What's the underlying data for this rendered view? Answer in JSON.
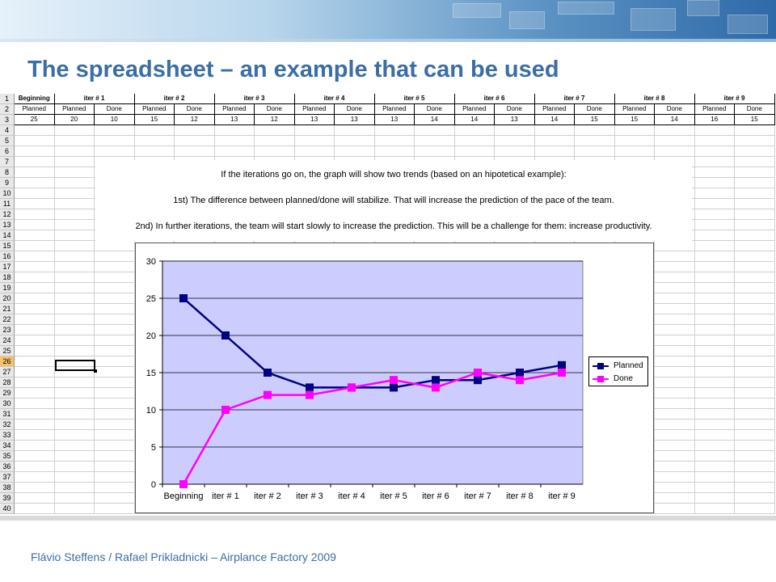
{
  "slide": {
    "title": "The spreadsheet – an example that can be used",
    "footer": "Flávio Steffens / Rafael Prikladnicki – Airplance Factory 2009"
  },
  "sheet": {
    "header_row1": [
      "Beginning",
      "iter # 1",
      "iter # 2",
      "iter # 3",
      "iter # 4",
      "iter # 5",
      "iter # 6",
      "iter # 7",
      "iter # 8",
      "iter # 9"
    ],
    "header_row2": [
      "Planned",
      "Planned",
      "Done",
      "Planned",
      "Done",
      "Planned",
      "Done",
      "Planned",
      "Done",
      "Planned",
      "Done",
      "Planned",
      "Done",
      "Planned",
      "Done",
      "Planned",
      "Done",
      "Planned",
      "Done"
    ],
    "values_row3": [
      "25",
      "20",
      "10",
      "15",
      "12",
      "13",
      "12",
      "13",
      "13",
      "13",
      "14",
      "14",
      "13",
      "14",
      "15",
      "15",
      "14",
      "16",
      "15"
    ],
    "active_row": "26",
    "row_numbers": [
      "1",
      "2",
      "3",
      "4",
      "5",
      "6",
      "7",
      "8",
      "9",
      "10",
      "11",
      "12",
      "13",
      "14",
      "15",
      "16",
      "17",
      "18",
      "19",
      "20",
      "21",
      "22",
      "23",
      "24",
      "25",
      "26",
      "27",
      "28",
      "29",
      "30",
      "31",
      "32",
      "33",
      "34",
      "35",
      "36",
      "37",
      "38",
      "39",
      "40"
    ]
  },
  "notes": {
    "line1": "If the iterations go on, the graph will show two trends (based on an hipotetical example):",
    "line2": "1st) The difference between planned/done will stabilize. That will increase the prediction of the pace of the team.",
    "line3": "2nd) In further iterations, the team will start slowly to increase the prediction. This will be a challenge for them: increase productivity."
  },
  "chart_data": {
    "type": "line",
    "categories": [
      "Beginning",
      "iter # 1",
      "iter # 2",
      "iter # 3",
      "iter # 4",
      "iter # 5",
      "iter # 6",
      "iter # 7",
      "iter # 8",
      "iter # 9"
    ],
    "series": [
      {
        "name": "Planned",
        "color": "#000080",
        "marker": "square",
        "values": [
          25,
          20,
          15,
          13,
          13,
          13,
          14,
          14,
          15,
          16
        ]
      },
      {
        "name": "Done",
        "color": "#ff00ff",
        "marker": "square",
        "values": [
          0,
          10,
          12,
          12,
          13,
          14,
          13,
          15,
          14,
          15
        ]
      }
    ],
    "ylim": [
      0,
      30
    ],
    "yticks": [
      "0",
      "5",
      "10",
      "15",
      "20",
      "25",
      "30"
    ],
    "plot_background": "#ccccff",
    "grid": true,
    "legend_position": "right"
  }
}
